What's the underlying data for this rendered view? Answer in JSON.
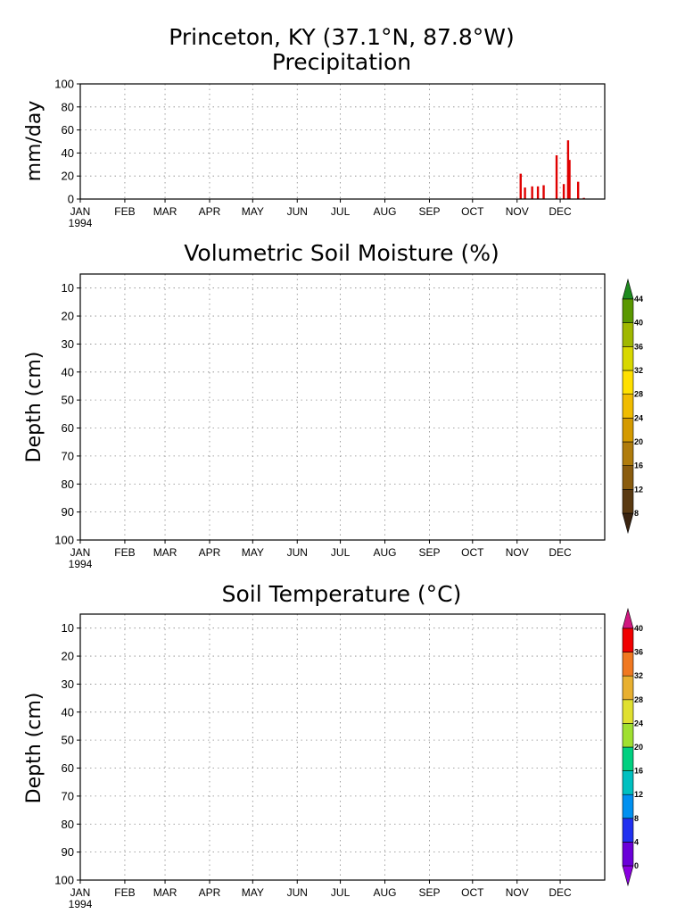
{
  "chart_data": [
    {
      "type": "bar",
      "title": "Princeton, KY  (37.1°N, 87.8°W)",
      "subtitle": "Precipitation",
      "ylabel": "mm/day",
      "ylim": [
        0,
        100
      ],
      "yticks": [
        "0",
        "20",
        "40",
        "60",
        "80",
        "100"
      ],
      "x_axis": {
        "months": [
          "JAN",
          "FEB",
          "MAR",
          "APR",
          "MAY",
          "JUN",
          "JUL",
          "AUG",
          "SEP",
          "OCT",
          "NOV",
          "DEC"
        ],
        "year": "1994"
      },
      "bar_color": "#e00000",
      "grid": true,
      "series": [
        {
          "x": [
            "1994-11-03",
            "1994-11-06",
            "1994-11-11",
            "1994-11-15",
            "1994-11-19",
            "1994-11-28",
            "1994-12-03",
            "1994-12-06",
            "1994-12-07",
            "1994-12-13",
            "1994-12-17"
          ],
          "values": [
            22,
            10,
            11,
            11,
            12,
            38,
            13,
            51,
            34,
            15,
            1
          ]
        }
      ]
    },
    {
      "type": "heatmap",
      "title": "Volumetric Soil Moisture (%)",
      "ylabel": "Depth (cm)",
      "yticks": [
        "10",
        "20",
        "30",
        "40",
        "50",
        "60",
        "70",
        "80",
        "90",
        "100"
      ],
      "ylim": [
        100,
        5
      ],
      "x_axis": {
        "months": [
          "JAN",
          "FEB",
          "MAR",
          "APR",
          "MAY",
          "JUN",
          "JUL",
          "AUG",
          "SEP",
          "OCT",
          "NOV",
          "DEC"
        ],
        "year": "1994"
      },
      "grid": true,
      "values": [],
      "colorbar": {
        "labels": [
          "8",
          "12",
          "16",
          "20",
          "24",
          "28",
          "32",
          "36",
          "40",
          "44"
        ],
        "colors": [
          "#3a2410",
          "#5a3a12",
          "#8a5c0e",
          "#b07c0c",
          "#d49a00",
          "#f0bc00",
          "#ffe000",
          "#d8d800",
          "#a0b800",
          "#5a9800",
          "#1e8a1e"
        ]
      }
    },
    {
      "type": "heatmap",
      "title": "Soil Temperature (°C)",
      "ylabel": "Depth (cm)",
      "yticks": [
        "10",
        "20",
        "30",
        "40",
        "50",
        "60",
        "70",
        "80",
        "90",
        "100"
      ],
      "ylim": [
        100,
        5
      ],
      "x_axis": {
        "months": [
          "JAN",
          "FEB",
          "MAR",
          "APR",
          "MAY",
          "JUN",
          "JUL",
          "AUG",
          "SEP",
          "OCT",
          "NOV",
          "DEC"
        ],
        "year": "1994"
      },
      "grid": true,
      "values": [],
      "colorbar": {
        "labels": [
          "0",
          "4",
          "8",
          "12",
          "16",
          "20",
          "24",
          "28",
          "32",
          "36",
          "40"
        ],
        "colors": [
          "#8a00e0",
          "#6a00d8",
          "#2030f0",
          "#0090f0",
          "#00c0c0",
          "#00d080",
          "#a0e030",
          "#e0e030",
          "#e8b030",
          "#f07820",
          "#f00000",
          "#d01880"
        ]
      }
    }
  ]
}
